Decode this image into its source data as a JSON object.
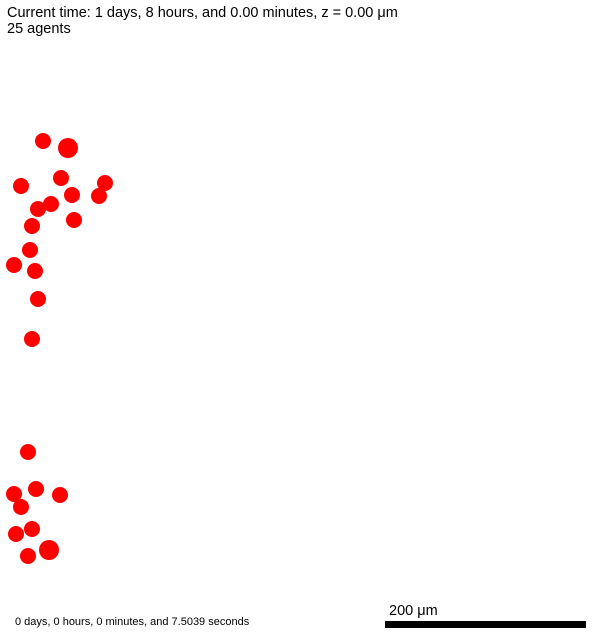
{
  "header": {
    "time_text": "Current time: 1 days, 8 hours, and 0.00 minutes, z = 0.00 μm",
    "agent_count_text": "25 agents"
  },
  "agents": {
    "color": "#ff0000",
    "count": 25
  },
  "scalebar": {
    "label": "200 μm",
    "color": "#000000"
  },
  "footer": {
    "elapsed_text": "0 days, 0 hours, 0 minutes, and 7.5039 seconds"
  }
}
